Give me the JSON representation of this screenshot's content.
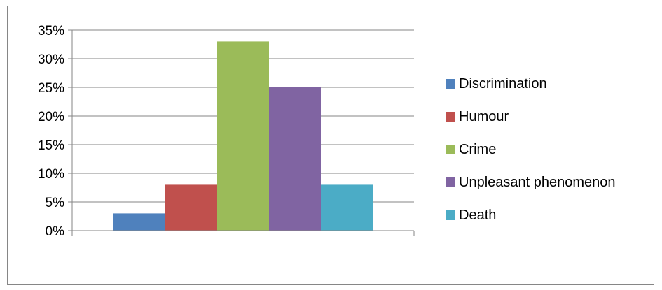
{
  "chart_data": {
    "type": "bar",
    "categories": [
      "Discrimination",
      "Humour",
      "Crime",
      "Unpleasant phenomenon",
      "Death"
    ],
    "series": [
      {
        "name": "Discrimination",
        "value": 3,
        "color": "#4F81BD"
      },
      {
        "name": "Humour",
        "value": 8,
        "color": "#C0504D"
      },
      {
        "name": "Crime",
        "value": 33,
        "color": "#9BBB59"
      },
      {
        "name": "Unpleasant phenomenon",
        "value": 25,
        "color": "#8064A2"
      },
      {
        "name": "Death",
        "value": 8,
        "color": "#4BACC6"
      }
    ],
    "y_ticks": [
      "0%",
      "5%",
      "10%",
      "15%",
      "20%",
      "25%",
      "30%",
      "35%"
    ],
    "ylim": [
      0,
      35
    ],
    "unit": "%",
    "grid": true,
    "legend_position": "right",
    "title": "",
    "xlabel": "",
    "ylabel": ""
  }
}
